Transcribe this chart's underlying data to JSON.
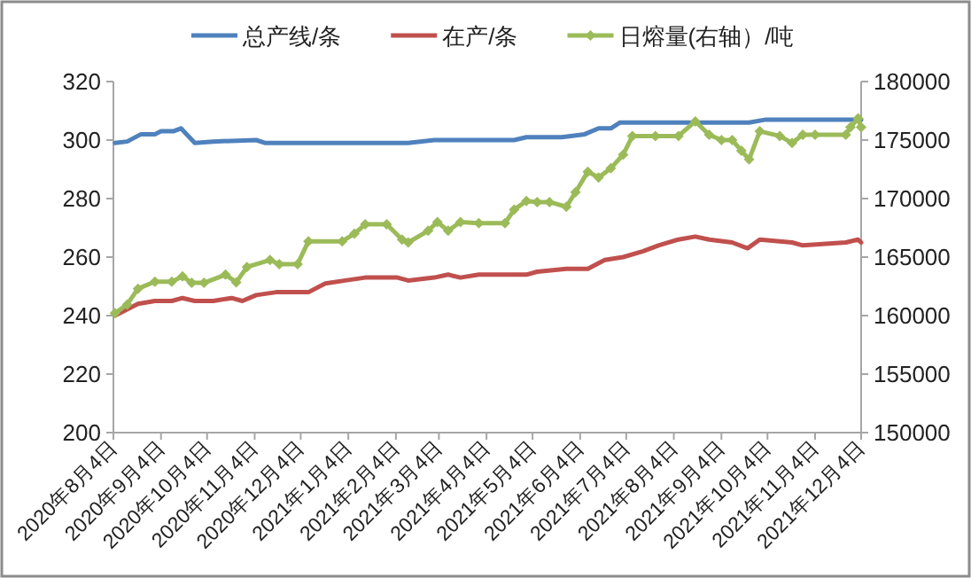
{
  "chart_data": {
    "type": "line",
    "legend": "top",
    "line_style": "solid",
    "xlim": [
      "2020-08-04",
      "2021-12-04"
    ],
    "xticks": [
      {
        "value": "2020-08-04",
        "label": "2020年8月4日"
      },
      {
        "value": "2020-09-04",
        "label": "2020年9月4日"
      },
      {
        "value": "2020-10-04",
        "label": "2020年10月4日"
      },
      {
        "value": "2020-11-04",
        "label": "2020年11月4日"
      },
      {
        "value": "2020-12-04",
        "label": "2020年12月4日"
      },
      {
        "value": "2021-01-04",
        "label": "2021年1月4日"
      },
      {
        "value": "2021-02-04",
        "label": "2021年2月4日"
      },
      {
        "value": "2021-03-04",
        "label": "2021年3月4日"
      },
      {
        "value": "2021-04-04",
        "label": "2021年4月4日"
      },
      {
        "value": "2021-05-04",
        "label": "2021年5月4日"
      },
      {
        "value": "2021-06-04",
        "label": "2021年6月4日"
      },
      {
        "value": "2021-07-04",
        "label": "2021年7月4日"
      },
      {
        "value": "2021-08-04",
        "label": "2021年8月4日"
      },
      {
        "value": "2021-09-04",
        "label": "2021年9月4日"
      },
      {
        "value": "2021-10-04",
        "label": "2021年10月4日"
      },
      {
        "value": "2021-11-04",
        "label": "2021年11月4日"
      },
      {
        "value": "2021-12-04",
        "label": "2021年12月4日"
      }
    ],
    "ylim": [
      200,
      320
    ],
    "yticks": [
      200,
      220,
      240,
      260,
      280,
      300,
      320
    ],
    "y2lim": [
      150000,
      180000
    ],
    "y2ticks": [
      150000,
      155000,
      160000,
      165000,
      170000,
      175000,
      180000
    ],
    "series": [
      {
        "name": "总产线/条",
        "color": "#4f81bd",
        "marker": "none",
        "x": [
          "2020-08-05",
          "2020-08-13",
          "2020-08-22",
          "2020-08-31",
          "2020-09-04",
          "2020-09-12",
          "2020-09-17",
          "2020-09-26",
          "2020-10-08",
          "2020-11-05",
          "2020-11-11",
          "2021-02-12",
          "2021-03-01",
          "2021-04-22",
          "2021-04-30",
          "2021-05-23",
          "2021-06-07",
          "2021-06-16",
          "2021-06-24",
          "2021-06-30",
          "2021-09-22",
          "2021-10-03",
          "2021-12-04"
        ],
        "values": [
          299,
          299.5,
          302,
          302,
          303,
          303,
          304,
          299,
          299.5,
          300,
          299,
          299,
          300,
          300,
          301,
          301,
          302,
          304,
          304,
          306,
          306,
          307,
          307
        ]
      },
      {
        "name": "在产/条",
        "color": "#c0504d",
        "marker": "none",
        "x": [
          "2020-08-05",
          "2020-08-20",
          "2020-08-31",
          "2020-09-11",
          "2020-09-18",
          "2020-09-26",
          "2020-10-08",
          "2020-10-20",
          "2020-10-27",
          "2020-11-05",
          "2020-11-18",
          "2020-12-09",
          "2020-12-20",
          "2021-01-02",
          "2021-01-15",
          "2021-02-05",
          "2021-02-12",
          "2021-03-01",
          "2021-03-10",
          "2021-03-18",
          "2021-03-30",
          "2021-04-30",
          "2021-05-07",
          "2021-05-26",
          "2021-06-09",
          "2021-06-20",
          "2021-07-02",
          "2021-07-15",
          "2021-07-25",
          "2021-08-07",
          "2021-08-18",
          "2021-08-27",
          "2021-09-11",
          "2021-09-21",
          "2021-09-29",
          "2021-10-20",
          "2021-10-27",
          "2021-11-24",
          "2021-12-02",
          "2021-12-04"
        ],
        "values": [
          240,
          244,
          245,
          245,
          246,
          245,
          245,
          246,
          245,
          247,
          248,
          248,
          251,
          252,
          253,
          253,
          252,
          253,
          254,
          253,
          254,
          254,
          255,
          256,
          256,
          259,
          260,
          262,
          264,
          266,
          267,
          266,
          265,
          263,
          266,
          265,
          264,
          265,
          266,
          265
        ]
      },
      {
        "name": "日熔量(右轴）/吨",
        "color": "#9bbb59",
        "marker": "diamond",
        "axis": "y2",
        "x": [
          "2020-08-05",
          "2020-08-13",
          "2020-08-20",
          "2020-08-31",
          "2020-09-11",
          "2020-09-18",
          "2020-09-24",
          "2020-10-02",
          "2020-10-16",
          "2020-10-23",
          "2020-10-30",
          "2020-11-14",
          "2020-11-20",
          "2020-12-02",
          "2020-12-09",
          "2020-12-31",
          "2021-01-08",
          "2021-01-15",
          "2021-01-29",
          "2021-02-08",
          "2021-02-12",
          "2021-02-25",
          "2021-03-03",
          "2021-03-10",
          "2021-03-18",
          "2021-03-30",
          "2021-04-16",
          "2021-04-22",
          "2021-04-30",
          "2021-05-07",
          "2021-05-15",
          "2021-05-26",
          "2021-06-01",
          "2021-06-09",
          "2021-06-16",
          "2021-06-24",
          "2021-07-02",
          "2021-07-08",
          "2021-07-23",
          "2021-08-07",
          "2021-08-18",
          "2021-08-27",
          "2021-09-04",
          "2021-09-11",
          "2021-09-17",
          "2021-09-22",
          "2021-09-29",
          "2021-10-12",
          "2021-10-20",
          "2021-10-27",
          "2021-11-04",
          "2021-11-24",
          "2021-11-27",
          "2021-12-02",
          "2021-12-04"
        ],
        "values": [
          160200,
          160950,
          162300,
          162900,
          162900,
          163350,
          162800,
          162800,
          163500,
          162850,
          164150,
          164750,
          164400,
          164400,
          166350,
          166350,
          167000,
          167800,
          167800,
          166500,
          166250,
          167250,
          168000,
          167250,
          168000,
          167900,
          167900,
          169050,
          169800,
          169700,
          169700,
          169300,
          170550,
          172300,
          171800,
          172600,
          173750,
          175350,
          175350,
          175350,
          176600,
          175450,
          175000,
          175000,
          174100,
          173350,
          175750,
          175350,
          174750,
          175450,
          175450,
          175450,
          176100,
          176850,
          176100
        ]
      }
    ]
  }
}
